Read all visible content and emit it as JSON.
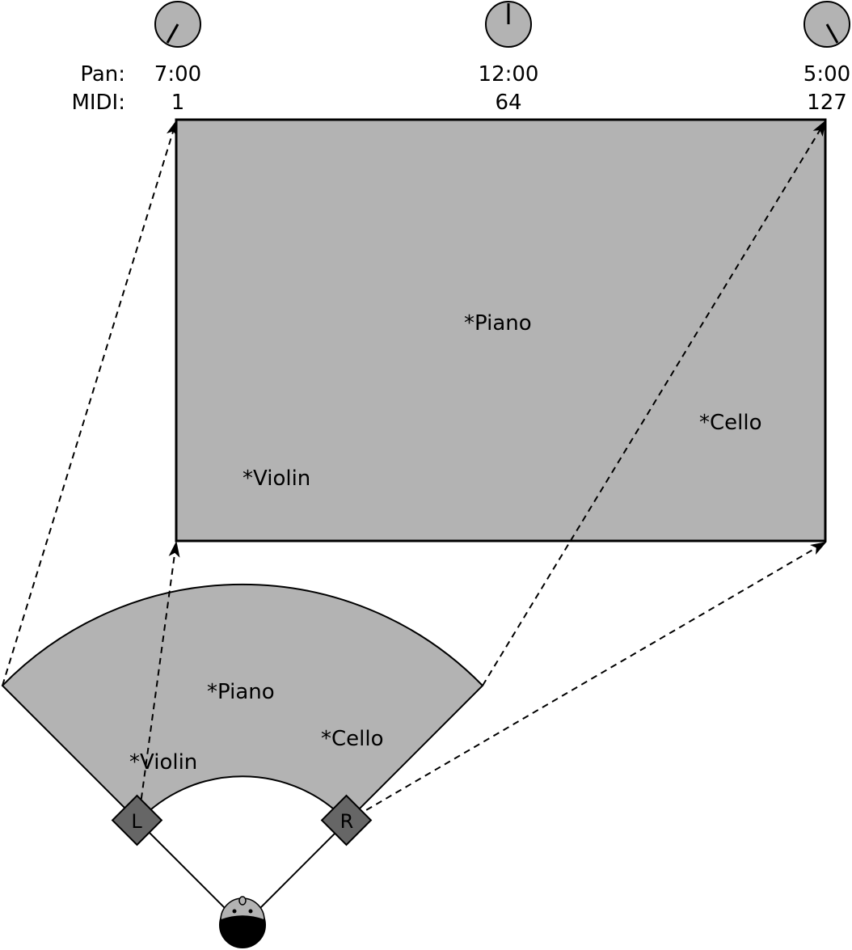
{
  "header": {
    "pan_label": "Pan:",
    "midi_label": "MIDI:"
  },
  "knobs": [
    {
      "pan": "7:00",
      "midi": "1"
    },
    {
      "pan": "12:00",
      "midi": "64"
    },
    {
      "pan": "5:00",
      "midi": "127"
    }
  ],
  "mix_panel": {
    "instruments": [
      "*Piano",
      "*Cello",
      "*Violin"
    ]
  },
  "stage": {
    "instruments": [
      "*Piano",
      "*Cello",
      "*Violin"
    ],
    "speakers": {
      "left": "L",
      "right": "R"
    }
  },
  "colors": {
    "panel_fill": "#b3b3b3",
    "speaker_fill": "#666666",
    "stroke": "#000000"
  }
}
